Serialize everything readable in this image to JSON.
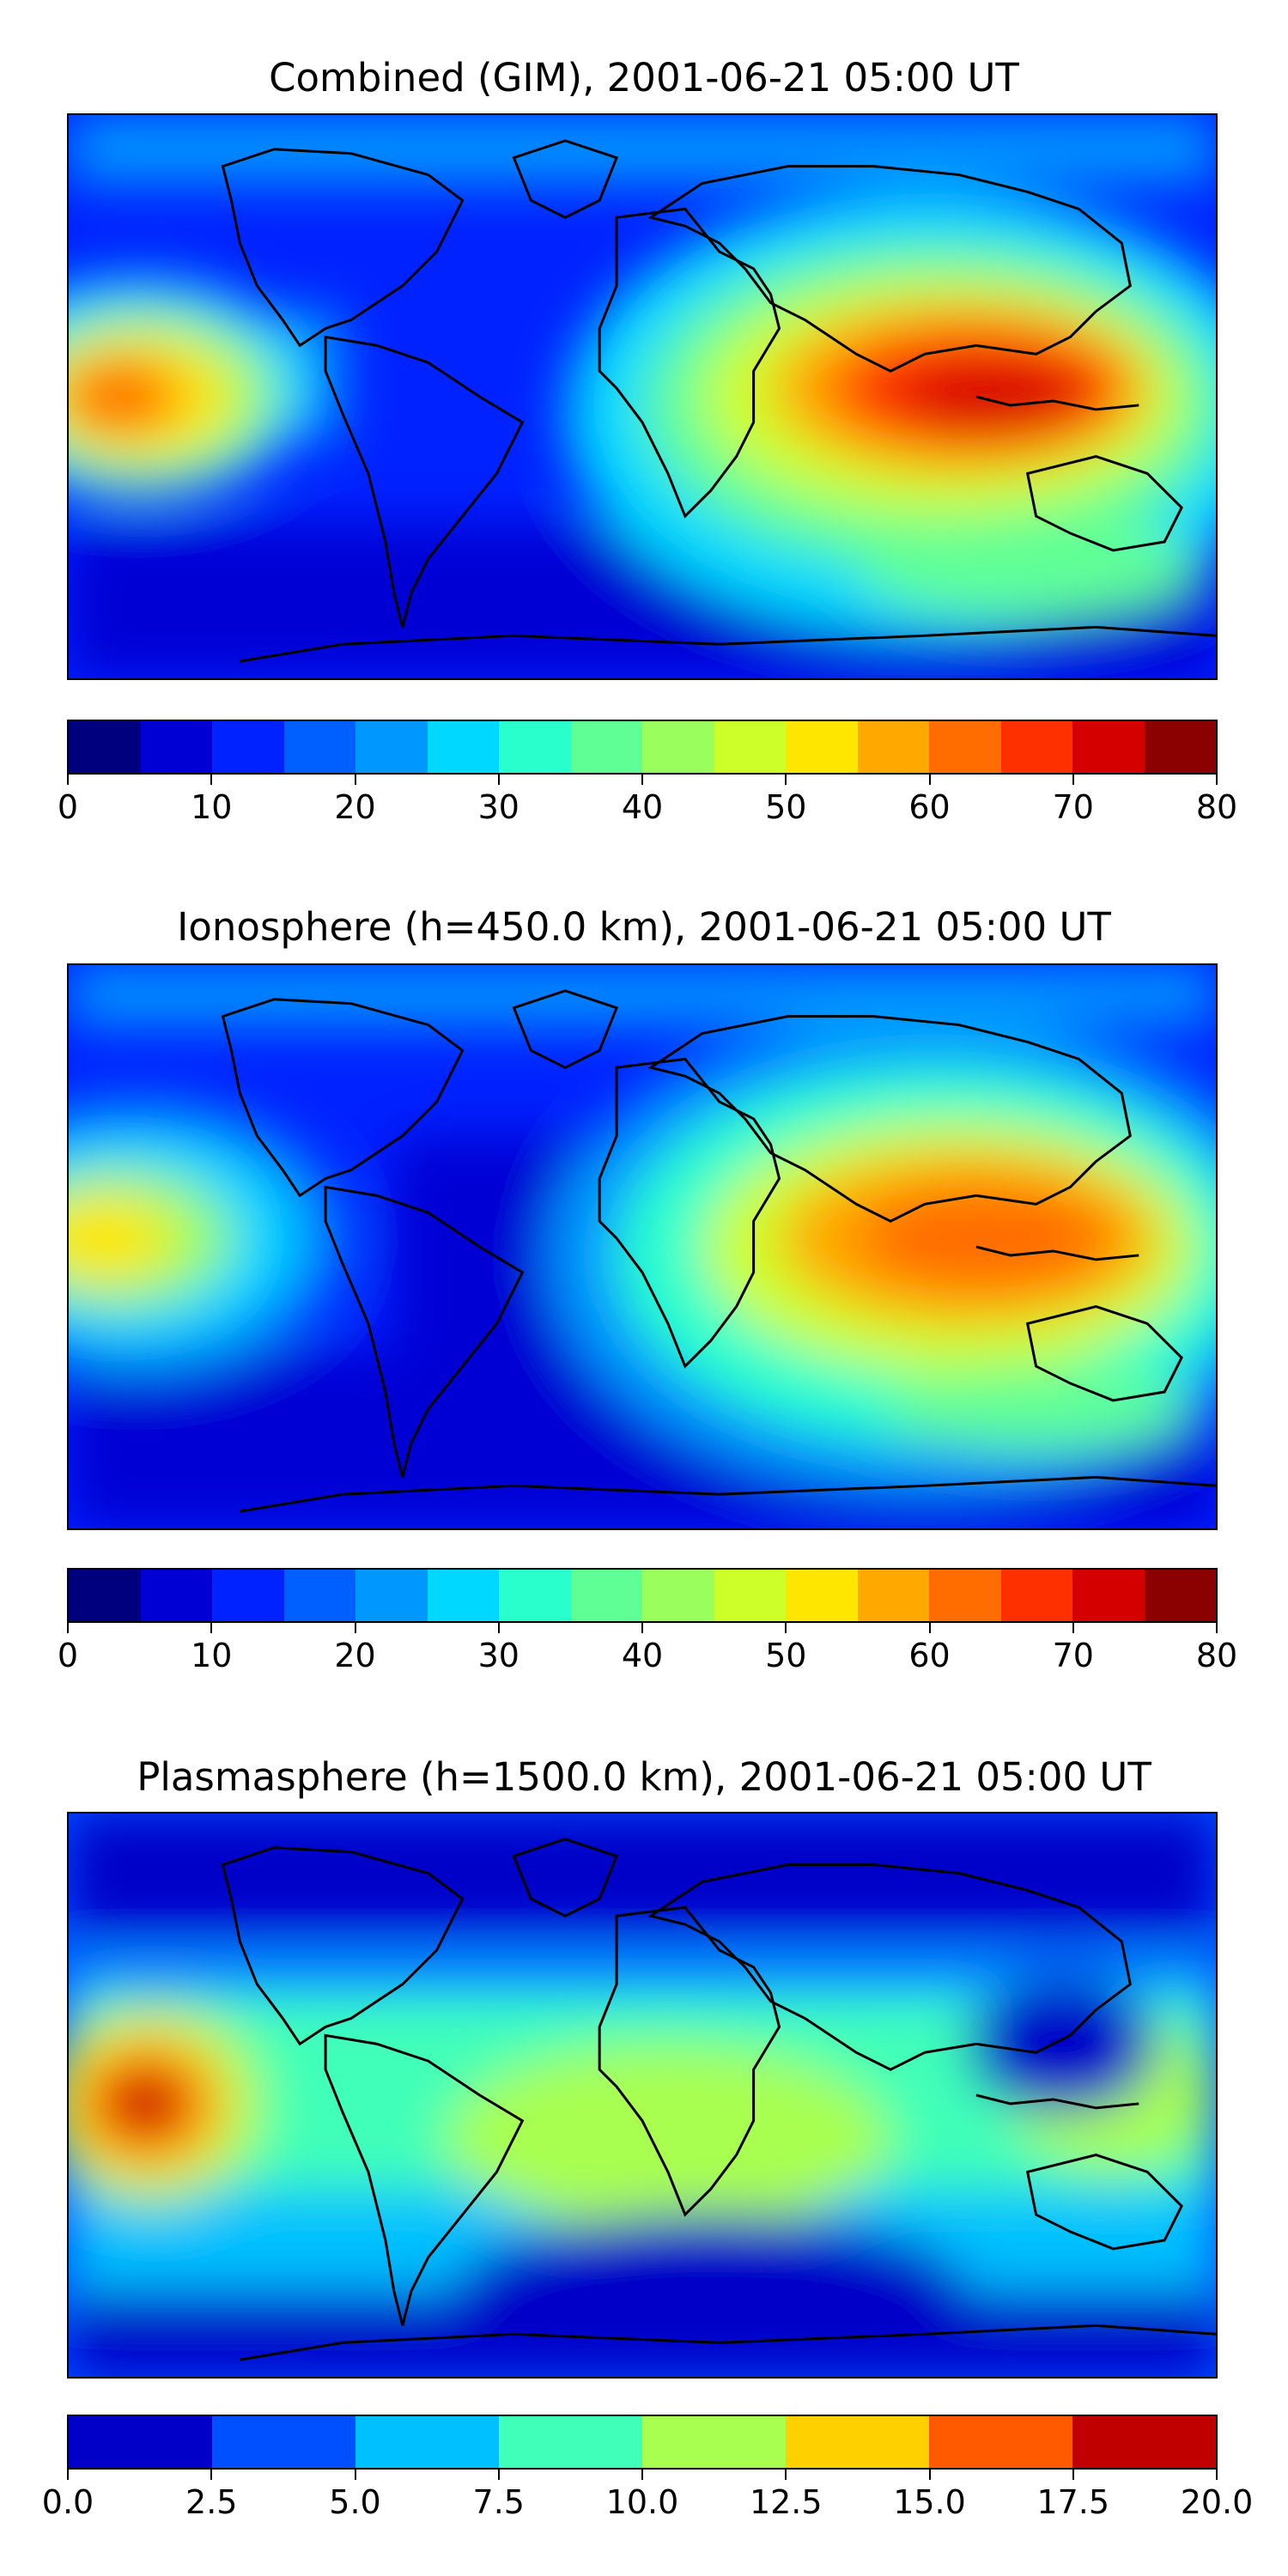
{
  "panels": [
    {
      "title": "Combined (GIM), 2001-06-21 05:00 UT",
      "colorbar": {
        "ticks": [
          "0",
          "10",
          "20",
          "30",
          "40",
          "50",
          "60",
          "70",
          "80"
        ],
        "colors": [
          "#00007f",
          "#0000d4",
          "#0022ff",
          "#0060ff",
          "#0098ff",
          "#00d8ff",
          "#29ffcd",
          "#60ff96",
          "#9aff5d",
          "#cdff29",
          "#ffe600",
          "#ffa800",
          "#ff6c00",
          "#ff3000",
          "#d40000",
          "#8b0000"
        ]
      }
    },
    {
      "title": "Ionosphere  (h=450.0 km), 2001-06-21 05:00 UT",
      "colorbar": {
        "ticks": [
          "0",
          "10",
          "20",
          "30",
          "40",
          "50",
          "60",
          "70",
          "80"
        ],
        "colors": [
          "#00007f",
          "#0000d4",
          "#0022ff",
          "#0060ff",
          "#0098ff",
          "#00d8ff",
          "#29ffcd",
          "#60ff96",
          "#9aff5d",
          "#cdff29",
          "#ffe600",
          "#ffa800",
          "#ff6c00",
          "#ff3000",
          "#d40000",
          "#8b0000"
        ]
      }
    },
    {
      "title": "Plasmasphere (h=1500.0 km), 2001-06-21 05:00 UT",
      "colorbar": {
        "ticks": [
          "0.0",
          "2.5",
          "5.0",
          "7.5",
          "10.0",
          "12.5",
          "15.0",
          "17.5",
          "20.0"
        ],
        "colors": [
          "#0000c8",
          "#0050ff",
          "#00c0ff",
          "#40ffb8",
          "#a8ff50",
          "#ffd000",
          "#ff5a00",
          "#c00000"
        ]
      }
    }
  ]
}
